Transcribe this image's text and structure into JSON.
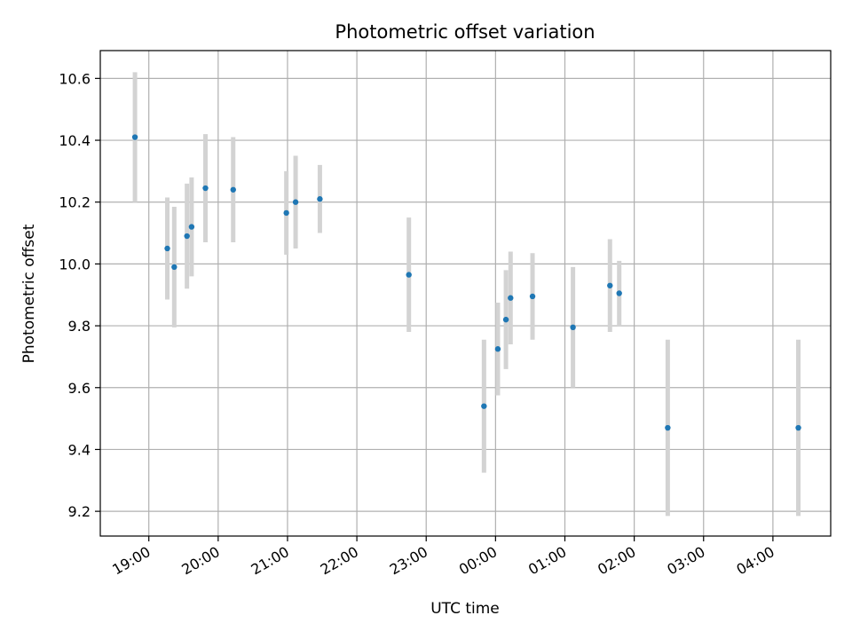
{
  "chart_data": {
    "type": "scatter",
    "title": "Photometric offset variation",
    "xlabel": "UTC time",
    "ylabel": "Photometric offset",
    "ylim": [
      9.12,
      10.69
    ],
    "xlim": [
      "18:18",
      "04:50"
    ],
    "grid": true,
    "x_ticks": [
      "19:00",
      "20:00",
      "21:00",
      "22:00",
      "23:00",
      "00:00",
      "01:00",
      "02:00",
      "03:00",
      "04:00"
    ],
    "y_ticks": [
      "9.2",
      "9.4",
      "9.6",
      "9.8",
      "10.0",
      "10.2",
      "10.4",
      "10.6"
    ],
    "series": [
      {
        "marker_color": "#1f77b4",
        "errorbar_color": "#d3d3d3",
        "points": [
          {
            "time": "18:48",
            "y": 10.41,
            "err": 0.21
          },
          {
            "time": "19:16",
            "y": 10.05,
            "err": 0.165
          },
          {
            "time": "19:22",
            "y": 9.99,
            "err": 0.195
          },
          {
            "time": "19:33",
            "y": 10.09,
            "err": 0.17
          },
          {
            "time": "19:37",
            "y": 10.12,
            "err": 0.16
          },
          {
            "time": "19:49",
            "y": 10.245,
            "err": 0.175
          },
          {
            "time": "20:13",
            "y": 10.24,
            "err": 0.17
          },
          {
            "time": "20:59",
            "y": 10.165,
            "err": 0.135
          },
          {
            "time": "21:07",
            "y": 10.2,
            "err": 0.15
          },
          {
            "time": "21:28",
            "y": 10.21,
            "err": 0.11
          },
          {
            "time": "22:45",
            "y": 9.965,
            "err": 0.185
          },
          {
            "time": "23:50",
            "y": 9.54,
            "err": 0.215
          },
          {
            "time": "00:02",
            "y": 9.725,
            "err": 0.15
          },
          {
            "time": "00:09",
            "y": 9.82,
            "err": 0.16
          },
          {
            "time": "00:13",
            "y": 9.89,
            "err": 0.15
          },
          {
            "time": "00:32",
            "y": 9.895,
            "err": 0.14
          },
          {
            "time": "01:07",
            "y": 9.795,
            "err": 0.195
          },
          {
            "time": "01:39",
            "y": 9.93,
            "err": 0.15
          },
          {
            "time": "01:47",
            "y": 9.905,
            "err": 0.105
          },
          {
            "time": "02:29",
            "y": 9.47,
            "err": 0.285
          },
          {
            "time": "04:22",
            "y": 9.47,
            "err": 0.285
          }
        ]
      }
    ]
  }
}
